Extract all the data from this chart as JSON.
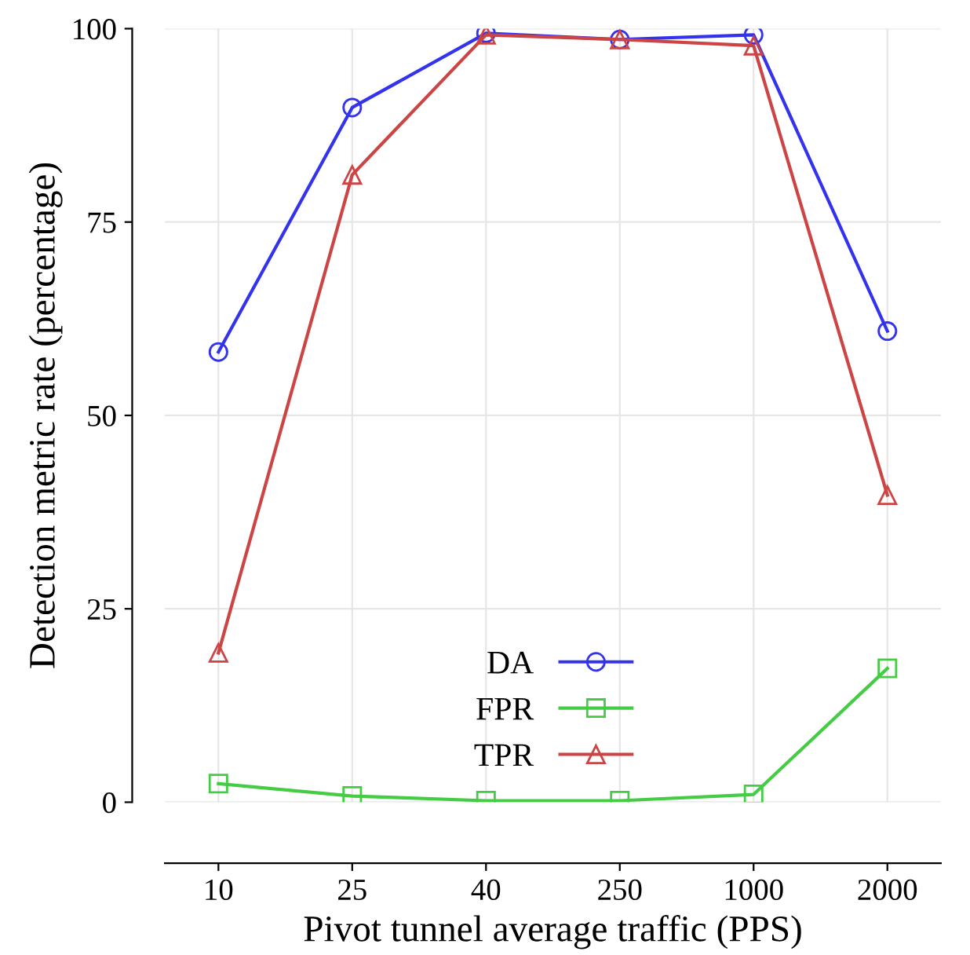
{
  "chart_data": {
    "type": "line",
    "xlabel": "Pivot tunnel average traffic (PPS)",
    "ylabel": "Detection metric rate (percentage)",
    "categories": [
      "10",
      "25",
      "40",
      "250",
      "1000",
      "2000"
    ],
    "series": [
      {
        "name": "DA",
        "color": "#3333ee",
        "marker": "circle",
        "values": [
          58.2,
          89.8,
          99.4,
          98.6,
          99.2,
          60.9
        ]
      },
      {
        "name": "FPR",
        "color": "#44cc44",
        "marker": "square",
        "values": [
          2.4,
          0.8,
          0.2,
          0.2,
          1.0,
          17.3
        ]
      },
      {
        "name": "TPR",
        "color": "#cc4444",
        "marker": "triangle",
        "values": [
          19.3,
          81.1,
          99.2,
          98.6,
          97.8,
          39.7
        ]
      }
    ],
    "ylim": [
      0,
      100
    ],
    "yticks": [
      0,
      25,
      50,
      75,
      100
    ],
    "grid": true,
    "legend": "bottom",
    "line_style": "solid"
  }
}
